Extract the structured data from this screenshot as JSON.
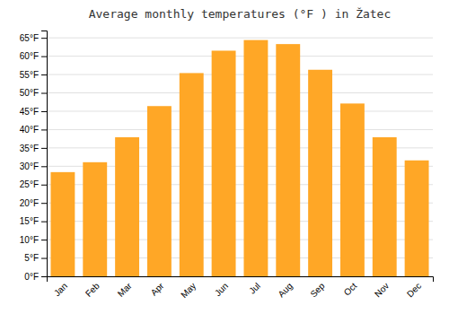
{
  "chart_data": {
    "type": "bar",
    "title": "Average monthly temperatures (°F ) in Žatec",
    "categories": [
      "Jan",
      "Feb",
      "Mar",
      "Apr",
      "May",
      "Jun",
      "Jul",
      "Aug",
      "Sep",
      "Oct",
      "Nov",
      "Dec"
    ],
    "values": [
      28.4,
      31.1,
      37.9,
      46.4,
      55.4,
      61.5,
      64.4,
      63.3,
      56.3,
      47.1,
      37.9,
      31.6
    ],
    "color": "#FFA726",
    "ylim": [
      0,
      67
    ],
    "yticks": [
      {
        "value": 0,
        "label": "0°F"
      },
      {
        "value": 5,
        "label": "5°F"
      },
      {
        "value": 10,
        "label": "10°F"
      },
      {
        "value": 15,
        "label": "15°F"
      },
      {
        "value": 20,
        "label": "20°F"
      },
      {
        "value": 25,
        "label": "25°F"
      },
      {
        "value": 30,
        "label": "30°F"
      },
      {
        "value": 35,
        "label": "35°F"
      },
      {
        "value": 40,
        "label": "40°F"
      },
      {
        "value": 45,
        "label": "45°F"
      },
      {
        "value": 50,
        "label": "50°F"
      },
      {
        "value": 55,
        "label": "55°F"
      },
      {
        "value": 60,
        "label": "60°F"
      },
      {
        "value": 65,
        "label": "65°F"
      }
    ],
    "grid": true
  }
}
